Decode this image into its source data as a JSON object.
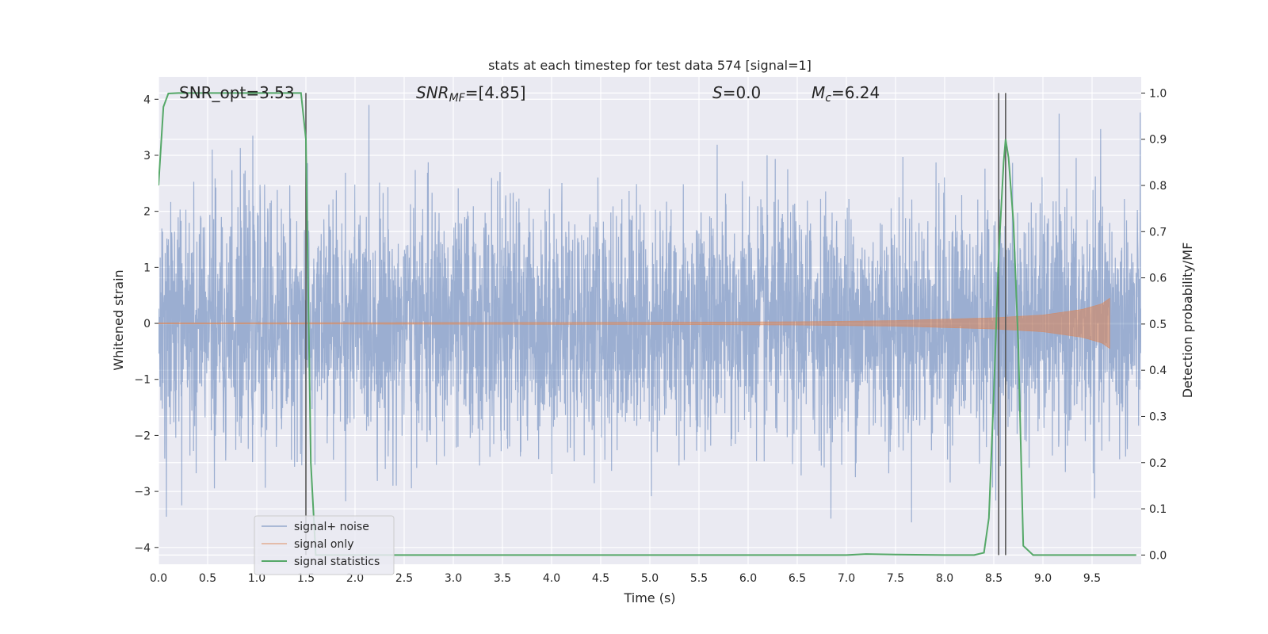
{
  "chart_data": {
    "type": "line",
    "title": "stats at each timestep for test data 574 [signal=1]",
    "xlabel": "Time (s)",
    "ylabel": "Whitened strain",
    "ylabel_right": "Detection probability/MF",
    "xlim": [
      0.0,
      10.0
    ],
    "ylim": [
      -4.3,
      4.4
    ],
    "ylim_right": [
      -0.02,
      1.035
    ],
    "x_ticks": [
      0.0,
      0.5,
      1.0,
      1.5,
      2.0,
      2.5,
      3.0,
      3.5,
      4.0,
      4.5,
      5.0,
      5.5,
      6.0,
      6.5,
      7.0,
      7.5,
      8.0,
      8.5,
      9.0,
      9.5
    ],
    "x_tick_labels": [
      "0.0",
      "0.5",
      "1.0",
      "1.5",
      "2.0",
      "2.5",
      "3.0",
      "3.5",
      "4.0",
      "4.5",
      "5.0",
      "5.5",
      "6.0",
      "6.5",
      "7.0",
      "7.5",
      "8.0",
      "8.5",
      "9.0",
      "9.5"
    ],
    "y_ticks": [
      -4,
      -3,
      -2,
      -1,
      0,
      1,
      2,
      3,
      4
    ],
    "y_tick_labels": [
      "−4",
      "−3",
      "−2",
      "−1",
      "0",
      "1",
      "2",
      "3",
      "4"
    ],
    "y_right_ticks": [
      0.0,
      0.1,
      0.2,
      0.3,
      0.4,
      0.5,
      0.6,
      0.7,
      0.8,
      0.9,
      1.0
    ],
    "y_right_tick_labels": [
      "0.0",
      "0.1",
      "0.2",
      "0.3",
      "0.4",
      "0.5",
      "0.6",
      "0.7",
      "0.8",
      "0.9",
      "1.0"
    ],
    "grid": true,
    "legend_placement": "lower-left",
    "annotations": {
      "snr_opt": "SNR_opt=3.53",
      "snr_mf_label": "SNR",
      "snr_mf_sub": "MF",
      "snr_mf_value": "=[4.85]",
      "s_label": "S",
      "s_value": "=0.0",
      "mc_label": "M",
      "mc_sub": "c",
      "mc_value": "=6.24"
    },
    "vertical_lines_x": [
      1.5,
      8.55,
      8.62
    ],
    "series": [
      {
        "name": "signal+ noise",
        "color": "#4c72b0",
        "axis": "left",
        "style": "noise",
        "x_range": [
          0.0,
          10.0
        ],
        "approx_envelope": [
          -3.5,
          3.6
        ]
      },
      {
        "name": "signal only",
        "color": "#dd8452",
        "axis": "left",
        "style": "chirp",
        "x_range": [
          0.0,
          9.68
        ],
        "x": [
          0.0,
          5.0,
          6.5,
          7.5,
          8.5,
          9.0,
          9.4,
          9.6,
          9.68
        ],
        "amplitude": [
          0.01,
          0.02,
          0.03,
          0.05,
          0.1,
          0.15,
          0.25,
          0.35,
          0.45
        ]
      },
      {
        "name": "signal statistics",
        "color": "#55a868",
        "axis": "right",
        "x": [
          0.0,
          0.05,
          0.1,
          0.2,
          0.5,
          1.0,
          1.3,
          1.45,
          1.5,
          1.55,
          1.6,
          2.0,
          3.0,
          4.0,
          5.0,
          6.0,
          7.0,
          7.2,
          7.5,
          8.0,
          8.3,
          8.4,
          8.45,
          8.5,
          8.55,
          8.6,
          8.62,
          8.65,
          8.7,
          8.75,
          8.8,
          8.9,
          9.0,
          9.5,
          9.95
        ],
        "y": [
          0.8,
          0.97,
          0.999,
          1.0,
          1.0,
          1.0,
          1.0,
          1.0,
          0.9,
          0.2,
          0.0,
          0.0,
          0.0,
          0.0,
          0.0,
          0.0,
          0.0,
          0.002,
          0.001,
          0.0,
          0.0,
          0.005,
          0.08,
          0.35,
          0.65,
          0.85,
          0.9,
          0.86,
          0.72,
          0.45,
          0.02,
          0.0,
          0.0,
          0.0,
          0.0
        ]
      }
    ]
  }
}
